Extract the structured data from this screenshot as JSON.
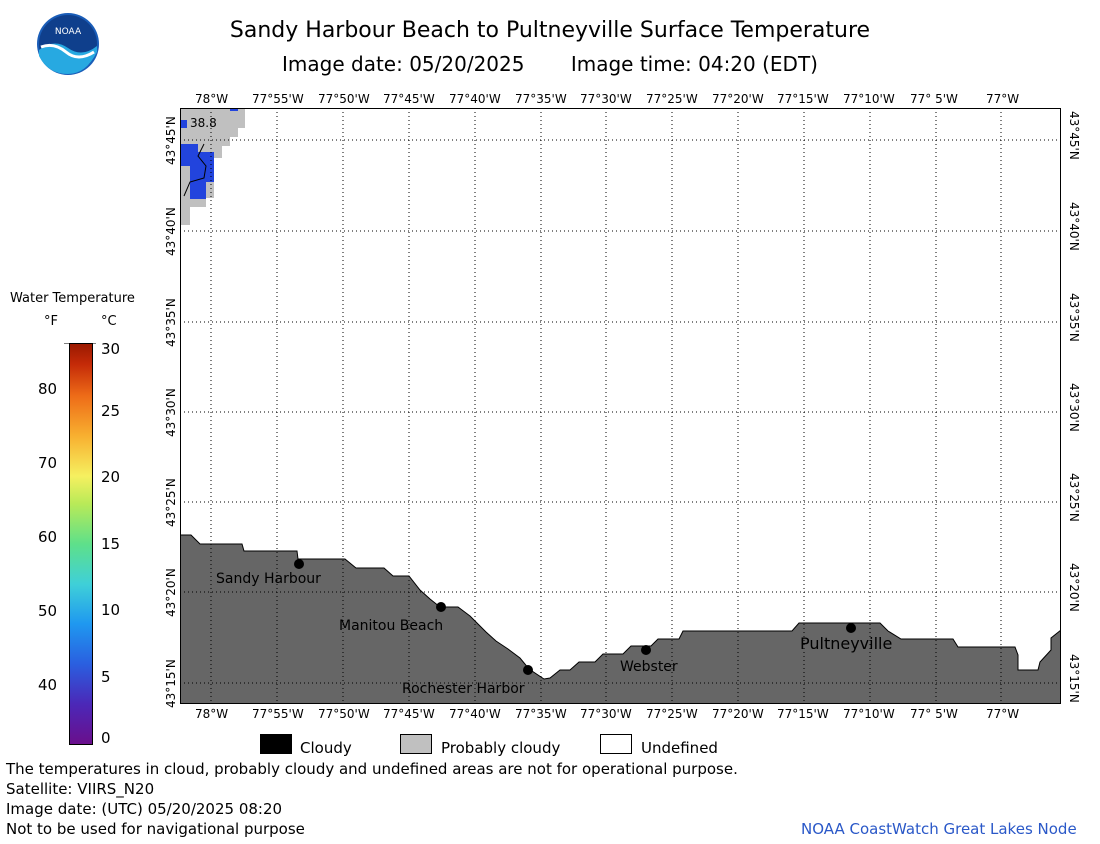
{
  "header": {
    "title": "Sandy Harbour Beach to Pultneyville Surface Temperature",
    "image_date": "Image date: 05/20/2025",
    "image_time": "Image time: 04:20 (EDT)"
  },
  "logo": {
    "text": "NOAA"
  },
  "map": {
    "lon_labels": [
      "78°W",
      "77°55'W",
      "77°50'W",
      "77°45'W",
      "77°40'W",
      "77°35'W",
      "77°30'W",
      "77°25'W",
      "77°20'W",
      "77°15'W",
      "77°10'W",
      "77° 5'W",
      "77°W"
    ],
    "lat_labels": [
      "43°45'N",
      "43°40'N",
      "43°35'N",
      "43°30'N",
      "43°25'N",
      "43°20'N",
      "43°15'N"
    ],
    "temp_label": "38.8",
    "places": [
      "Sandy Harbour",
      "Manitou Beach",
      "Rochester Harbor",
      "Webster",
      "Pultneyville"
    ],
    "colors": {
      "land": "#666666",
      "probably_cloudy": "#c0c0c0",
      "water": "#2244dd"
    }
  },
  "colorbar": {
    "title": "Water Temperature",
    "unit_f": "°F",
    "unit_c": "°C",
    "f_ticks": [
      "80",
      "70",
      "60",
      "50",
      "40"
    ],
    "c_ticks": [
      "30",
      "25",
      "20",
      "15",
      "10",
      "5",
      "0"
    ],
    "range_c": [
      0,
      30
    ]
  },
  "legend": {
    "cloudy": "Cloudy",
    "probably_cloudy": "Probably cloudy",
    "undefined": "Undefined"
  },
  "footer": {
    "note": "The temperatures in cloud, probably cloudy and undefined areas are not for operational purpose.",
    "satellite": "Satellite: VIIRS_N20",
    "utc_date": "Image date: (UTC) 05/20/2025  08:20",
    "nav": "Not to be used for navigational purpose",
    "credit": "NOAA CoastWatch Great Lakes Node"
  }
}
